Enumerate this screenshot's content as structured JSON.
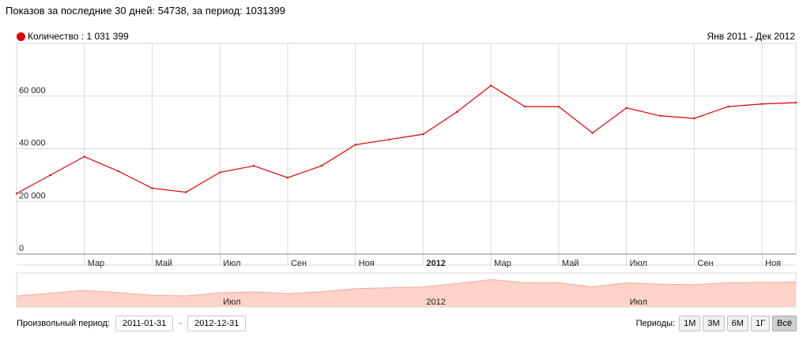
{
  "header": {
    "summary": "Показов за последние 30 дней: 54738, за период: 1031399",
    "legend_label": "Количество : 1 031 399",
    "date_range": "Янв 2011 - Дек 2012"
  },
  "colors": {
    "series": "#e00000",
    "navigator_fill": "#fdd3c9",
    "navigator_line": "#f2a89a"
  },
  "chart_data": {
    "type": "line",
    "series": [
      {
        "name": "Количество",
        "x": [
          "2011-01",
          "2011-02",
          "2011-03",
          "2011-04",
          "2011-05",
          "2011-06",
          "2011-07",
          "2011-08",
          "2011-09",
          "2011-10",
          "2011-11",
          "2011-12",
          "2012-01",
          "2012-02",
          "2012-03",
          "2012-04",
          "2012-05",
          "2012-06",
          "2012-07",
          "2012-08",
          "2012-09",
          "2012-10",
          "2012-11",
          "2012-12"
        ],
        "values": [
          23000,
          30000,
          37000,
          31500,
          25000,
          23500,
          31000,
          33500,
          29000,
          33500,
          41500,
          43500,
          45500,
          54000,
          64000,
          56000,
          56000,
          46000,
          55500,
          52500,
          51500,
          56000,
          57000,
          57500
        ]
      }
    ],
    "x_tick_labels": [
      "Мар",
      "Май",
      "Июл",
      "Сен",
      "Ноя",
      "2012",
      "Мар",
      "Май",
      "Июл",
      "Сен",
      "Ноя"
    ],
    "y_tick_labels": [
      "0",
      "20 000",
      "40 000",
      "60 000"
    ],
    "ylim": [
      0,
      80000
    ],
    "grid": true,
    "navigator_labels": [
      "Июл",
      "2012",
      "Июл"
    ]
  },
  "controls": {
    "custom_period_label": "Произвольный период:",
    "from_date": "2011-01-31",
    "separator": "-",
    "to_date": "2012-12-31",
    "periods_label": "Периоды:",
    "periods": [
      "1М",
      "3М",
      "6М",
      "1Г",
      "Всё"
    ],
    "active_period": "Всё"
  }
}
